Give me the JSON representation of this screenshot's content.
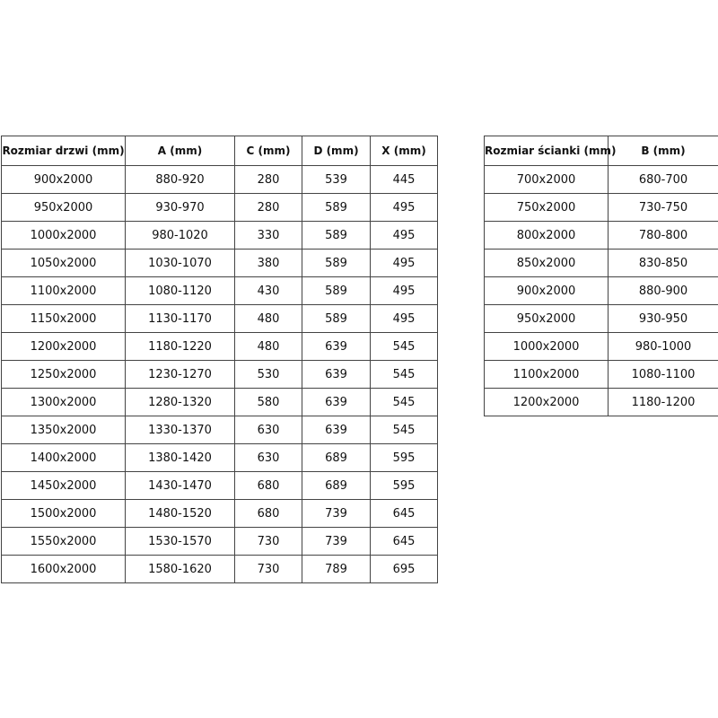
{
  "doors_table": {
    "headers": [
      "Rozmiar drzwi (mm)",
      "A (mm)",
      "C (mm)",
      "D (mm)",
      "X (mm)"
    ],
    "rows": [
      [
        "900x2000",
        "880-920",
        "280",
        "539",
        "445"
      ],
      [
        "950x2000",
        "930-970",
        "280",
        "589",
        "495"
      ],
      [
        "1000x2000",
        "980-1020",
        "330",
        "589",
        "495"
      ],
      [
        "1050x2000",
        "1030-1070",
        "380",
        "589",
        "495"
      ],
      [
        "1100x2000",
        "1080-1120",
        "430",
        "589",
        "495"
      ],
      [
        "1150x2000",
        "1130-1170",
        "480",
        "589",
        "495"
      ],
      [
        "1200x2000",
        "1180-1220",
        "480",
        "639",
        "545"
      ],
      [
        "1250x2000",
        "1230-1270",
        "530",
        "639",
        "545"
      ],
      [
        "1300x2000",
        "1280-1320",
        "580",
        "639",
        "545"
      ],
      [
        "1350x2000",
        "1330-1370",
        "630",
        "639",
        "545"
      ],
      [
        "1400x2000",
        "1380-1420",
        "630",
        "689",
        "595"
      ],
      [
        "1450x2000",
        "1430-1470",
        "680",
        "689",
        "595"
      ],
      [
        "1500x2000",
        "1480-1520",
        "680",
        "739",
        "645"
      ],
      [
        "1550x2000",
        "1530-1570",
        "730",
        "739",
        "645"
      ],
      [
        "1600x2000",
        "1580-1620",
        "730",
        "789",
        "695"
      ]
    ]
  },
  "walls_table": {
    "headers": [
      "Rozmiar ścianki (mm)",
      "B (mm)"
    ],
    "rows": [
      [
        "700x2000",
        "680-700"
      ],
      [
        "750x2000",
        "730-750"
      ],
      [
        "800x2000",
        "780-800"
      ],
      [
        "850x2000",
        "830-850"
      ],
      [
        "900x2000",
        "880-900"
      ],
      [
        "950x2000",
        "930-950"
      ],
      [
        "1000x2000",
        "980-1000"
      ],
      [
        "1100x2000",
        "1080-1100"
      ],
      [
        "1200x2000",
        "1180-1200"
      ]
    ]
  }
}
